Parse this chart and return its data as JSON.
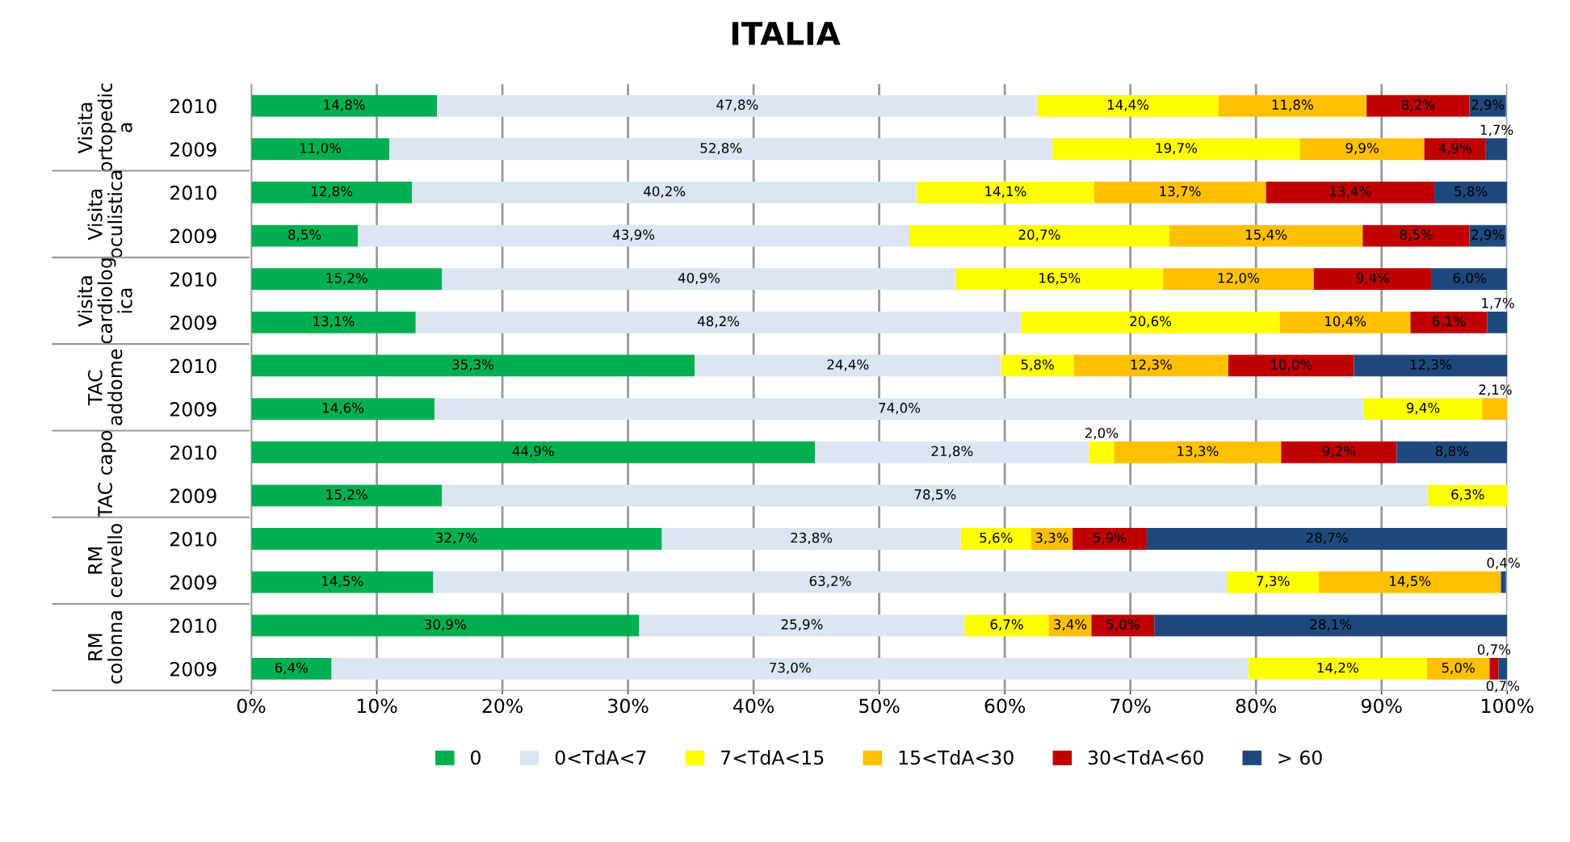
{
  "chart_data": {
    "type": "bar",
    "orientation": "horizontal",
    "stacked": true,
    "title": "ITALIA",
    "categories": [
      "2010",
      "2009",
      "2010",
      "2009",
      "2010",
      "2009",
      "2010",
      "2009",
      "2010",
      "2009",
      "2010",
      "2009",
      "2010",
      "2009"
    ],
    "annotations": [
      "Visita\nortopedic\na",
      "Visita\noculistica",
      "Visita\ncardiolog\nica",
      "TAC\naddome",
      "TAC capo",
      "RM\ncervello",
      "RM\ncolonna"
    ],
    "xlim": [
      0,
      100
    ],
    "xticks": [
      {
        "value": 0,
        "label": "0%"
      },
      {
        "value": 10,
        "label": "10%"
      },
      {
        "value": 20,
        "label": "20%"
      },
      {
        "value": 30,
        "label": "30%"
      },
      {
        "value": 40,
        "label": "40%"
      },
      {
        "value": 50,
        "label": "50%"
      },
      {
        "value": 60,
        "label": "60%"
      },
      {
        "value": 70,
        "label": "70%"
      },
      {
        "value": 80,
        "label": "80%"
      },
      {
        "value": 90,
        "label": "90%"
      },
      {
        "value": 100,
        "label": "100%"
      }
    ],
    "grid": "x",
    "legend": "bottom",
    "series": [
      {
        "name": "0",
        "color": "#00b050",
        "values": [
          14.8,
          11.0,
          12.8,
          8.5,
          15.2,
          13.1,
          35.3,
          14.6,
          44.9,
          15.2,
          32.7,
          14.5,
          30.9,
          6.4
        ],
        "value_labels": [
          "14,8%",
          "11,0%",
          "12,8%",
          "8,5%",
          "15,2%",
          "13,1%",
          "35,3%",
          "14,6%",
          "44,9%",
          "15,2%",
          "32,7%",
          "14,5%",
          "30,9%",
          "6,4%"
        ]
      },
      {
        "name": "0<TdA<7",
        "color": "#dce6f2",
        "values": [
          47.8,
          52.8,
          40.2,
          43.9,
          40.9,
          48.2,
          24.4,
          74.0,
          21.8,
          78.5,
          23.8,
          63.2,
          25.9,
          73.0
        ],
        "value_labels": [
          "47,8%",
          "52,8%",
          "40,2%",
          "43,9%",
          "40,9%",
          "48,2%",
          "24,4%",
          "74,0%",
          "21,8%",
          "78,5%",
          "23,8%",
          "63,2%",
          "25,9%",
          "73,0%"
        ]
      },
      {
        "name": "7<TdA<15",
        "color": "#ffff00",
        "values": [
          14.4,
          19.7,
          14.1,
          20.7,
          16.5,
          20.6,
          5.8,
          9.4,
          2.0,
          6.3,
          5.6,
          7.3,
          6.7,
          14.2
        ],
        "value_labels": [
          "14,4%",
          "19,7%",
          "14,1%",
          "20,7%",
          "16,5%",
          "20,6%",
          "5,8%",
          "9,4%",
          "2,0%",
          "6,3%",
          "5,6%",
          "7,3%",
          "6,7%",
          "14,2%"
        ]
      },
      {
        "name": "15<TdA<30",
        "color": "#ffc000",
        "values": [
          11.8,
          9.9,
          13.7,
          15.4,
          12.0,
          10.4,
          12.3,
          2.1,
          13.3,
          null,
          3.3,
          14.5,
          3.4,
          5.0
        ],
        "value_labels": [
          "11,8%",
          "9,9%",
          "13,7%",
          "15,4%",
          "12,0%",
          "10,4%",
          "12,3%",
          "2,1%",
          "13,3%",
          null,
          "3,3%",
          "14,5%",
          "3,4%",
          "5,0%"
        ]
      },
      {
        "name": "30<TdA<60",
        "color": "#c00000",
        "values": [
          8.2,
          4.9,
          13.4,
          8.5,
          9.4,
          6.1,
          10.0,
          null,
          9.2,
          null,
          5.9,
          null,
          5.0,
          0.7
        ],
        "value_labels": [
          "8,2%",
          "4,9%",
          "13,4%",
          "8,5%",
          "9,4%",
          "6,1%",
          "10,0%",
          null,
          "9,2%",
          null,
          "5,9%",
          null,
          "5,0%",
          "0,7%"
        ]
      },
      {
        "name": "> 60",
        "color": "#1f497d",
        "values": [
          2.9,
          1.7,
          5.8,
          2.9,
          6.0,
          1.7,
          12.3,
          null,
          8.8,
          null,
          28.7,
          0.4,
          28.1,
          0.7
        ],
        "value_labels": [
          "2,9%",
          "1,7%",
          "5,8%",
          "2,9%",
          "6,0%",
          "1,7%",
          "12,3%",
          null,
          "8,8%",
          null,
          "28,7%",
          "0,4%",
          "28,1%",
          "0,7%"
        ]
      }
    ]
  }
}
